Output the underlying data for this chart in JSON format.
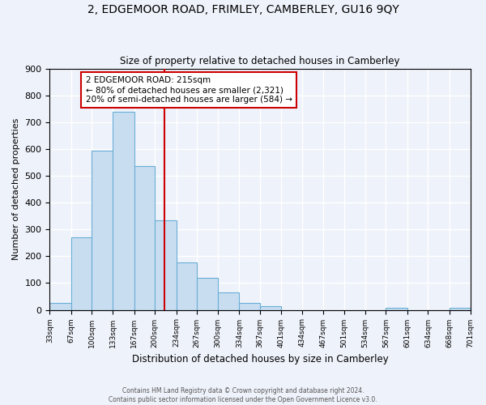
{
  "title": "2, EDGEMOOR ROAD, FRIMLEY, CAMBERLEY, GU16 9QY",
  "subtitle": "Size of property relative to detached houses in Camberley",
  "xlabel": "Distribution of detached houses by size in Camberley",
  "ylabel": "Number of detached properties",
  "bar_edges": [
    33,
    67,
    100,
    133,
    167,
    200,
    234,
    267,
    300,
    334,
    367,
    401,
    434,
    467,
    501,
    534,
    567,
    601,
    634,
    668,
    701
  ],
  "bar_heights": [
    27,
    270,
    595,
    740,
    535,
    335,
    178,
    120,
    65,
    25,
    15,
    0,
    0,
    0,
    0,
    0,
    8,
    0,
    0,
    8
  ],
  "bar_color": "#c8ddf0",
  "bar_edge_color": "#6aaed6",
  "vline_x": 215,
  "vline_color": "#cc0000",
  "annotation_text": "2 EDGEMOOR ROAD: 215sqm\n← 80% of detached houses are smaller (2,321)\n20% of semi-detached houses are larger (584) →",
  "annotation_box_color": "#ffffff",
  "annotation_box_edge": "#cc0000",
  "ylim": [
    0,
    900
  ],
  "yticks": [
    0,
    100,
    200,
    300,
    400,
    500,
    600,
    700,
    800,
    900
  ],
  "tick_labels": [
    "33sqm",
    "67sqm",
    "100sqm",
    "133sqm",
    "167sqm",
    "200sqm",
    "234sqm",
    "267sqm",
    "300sqm",
    "334sqm",
    "367sqm",
    "401sqm",
    "434sqm",
    "467sqm",
    "501sqm",
    "534sqm",
    "567sqm",
    "601sqm",
    "634sqm",
    "668sqm",
    "701sqm"
  ],
  "footer_line1": "Contains HM Land Registry data © Crown copyright and database right 2024.",
  "footer_line2": "Contains public sector information licensed under the Open Government Licence v3.0.",
  "background_color": "#eef2fa",
  "grid_color": "#ffffff"
}
